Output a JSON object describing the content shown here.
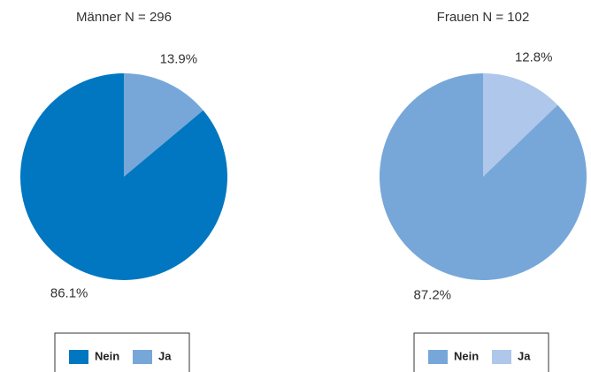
{
  "chart_data": [
    {
      "type": "pie",
      "title": "Männer N = 296",
      "categories": [
        "Nein",
        "Ja"
      ],
      "values": [
        86.1,
        13.9
      ],
      "value_labels": [
        "86.1%",
        "13.9%"
      ],
      "colors": [
        "#0077c0",
        "#77a7d8"
      ],
      "legend": "bottom"
    },
    {
      "type": "pie",
      "title": "Frauen N = 102",
      "categories": [
        "Nein",
        "Ja"
      ],
      "values": [
        87.2,
        12.8
      ],
      "value_labels": [
        "87.2%",
        "12.8%"
      ],
      "colors": [
        "#77a7d8",
        "#aec7ea"
      ],
      "legend": "bottom"
    }
  ]
}
